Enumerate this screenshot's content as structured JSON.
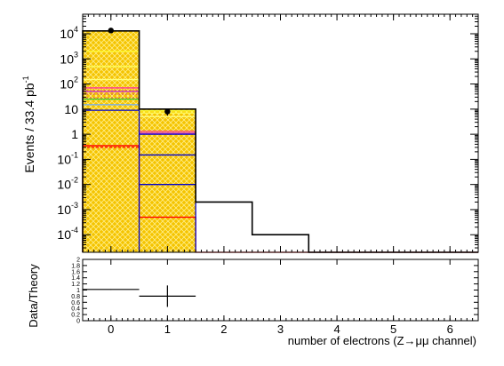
{
  "chart_data": [
    {
      "type": "histogram-stacked",
      "panel": "main",
      "x_bin_edges": [
        -0.5,
        0.5,
        1.5,
        2.5,
        3.5,
        4.5,
        5.5,
        6.5
      ],
      "xlim": [
        -0.5,
        6.5
      ],
      "ylim": [
        2e-05,
        60000
      ],
      "y_scale": "log",
      "ylabel": "Events / 33.4 pb",
      "ylabel_sup": "-1",
      "x_ticks": [
        "0",
        "1",
        "2",
        "3",
        "4",
        "5",
        "6"
      ],
      "y_ticks": [
        {
          "value": 10000,
          "base": "10",
          "exp": "4"
        },
        {
          "value": 1000,
          "base": "10",
          "exp": "3"
        },
        {
          "value": 100,
          "base": "10",
          "exp": "2"
        },
        {
          "value": 10,
          "base": "10",
          "exp": ""
        },
        {
          "value": 1,
          "base": "1",
          "exp": ""
        },
        {
          "value": 0.1,
          "base": "10",
          "exp": "-1"
        },
        {
          "value": 0.01,
          "base": "10",
          "exp": "-2"
        },
        {
          "value": 0.001,
          "base": "10",
          "exp": "-3"
        },
        {
          "value": 0.0001,
          "base": "10",
          "exp": "-4"
        }
      ],
      "mc_total": [
        13000,
        10,
        0.002,
        0.0001,
        0,
        0,
        0
      ],
      "stack_fill": {
        "values": [
          13000,
          10,
          0,
          0,
          0,
          0,
          0
        ],
        "color": "#f5c400"
      },
      "component_lines": [
        {
          "color": "#ffff33",
          "values": [
            2000,
            8.5,
            0,
            0,
            0,
            0,
            0
          ]
        },
        {
          "color": "#ffff55",
          "values": [
            500,
            7,
            0,
            0,
            0,
            0,
            0
          ]
        },
        {
          "color": "#ffff77",
          "values": [
            150,
            5,
            0,
            0,
            0,
            0,
            0
          ]
        },
        {
          "color": "#ff3399",
          "values": [
            70,
            1.3,
            0,
            0,
            0,
            0,
            0
          ]
        },
        {
          "color": "#cc33cc",
          "values": [
            50,
            1.1,
            0,
            0,
            0,
            0,
            0
          ]
        },
        {
          "color": "#33cc33",
          "values": [
            25,
            0,
            0,
            0,
            0,
            0,
            0
          ]
        },
        {
          "color": "#66aaff",
          "values": [
            15,
            0,
            0,
            0,
            0,
            0,
            0
          ]
        },
        {
          "color": "#0000cc",
          "values": [
            9,
            1,
            0,
            0,
            0,
            0,
            0
          ]
        },
        {
          "color": "#0000cc",
          "values": [
            0,
            0.15,
            0,
            0,
            0,
            0,
            0
          ]
        },
        {
          "color": "#0000cc",
          "values": [
            0,
            0.01,
            0,
            0,
            0,
            0,
            0
          ]
        },
        {
          "color": "#ff0000",
          "values": [
            0.35,
            0,
            0,
            0,
            0,
            0,
            0
          ]
        }
      ],
      "dashed_lines": [
        {
          "color": "#ff0000",
          "values": [
            0.3,
            0.0005,
            0,
            0,
            0,
            0,
            0
          ]
        }
      ],
      "red_outline": {
        "color": "#ff0000",
        "values": [
          0.35,
          0.0005,
          0,
          0,
          0,
          0,
          0
        ]
      },
      "data_points": [
        {
          "x": 0,
          "y": 13500,
          "err_low": 12500,
          "err_high": 14500
        },
        {
          "x": 1,
          "y": 8,
          "err_low": 5.5,
          "err_high": 10.5
        }
      ]
    },
    {
      "type": "ratio",
      "panel": "ratio",
      "xlim": [
        -0.5,
        6.5
      ],
      "ylim": [
        0,
        2
      ],
      "ylabel": "Data/Theory",
      "xlabel": "number of electrons (Z",
      "xlabel_arrow": "→",
      "xlabel_tail": "μμ channel)",
      "y_ticks": [
        "0",
        "0.2",
        "0.4",
        "0.6",
        "0.8",
        "1",
        "1.2",
        "1.4",
        "1.6",
        "1.8",
        "2"
      ],
      "points": [
        {
          "x_low": -0.5,
          "x_high": 0.5,
          "y": 1.02,
          "err": 0.01
        },
        {
          "x_low": 0.5,
          "x_high": 1.5,
          "y": 0.8,
          "err": 0.35
        }
      ]
    }
  ]
}
